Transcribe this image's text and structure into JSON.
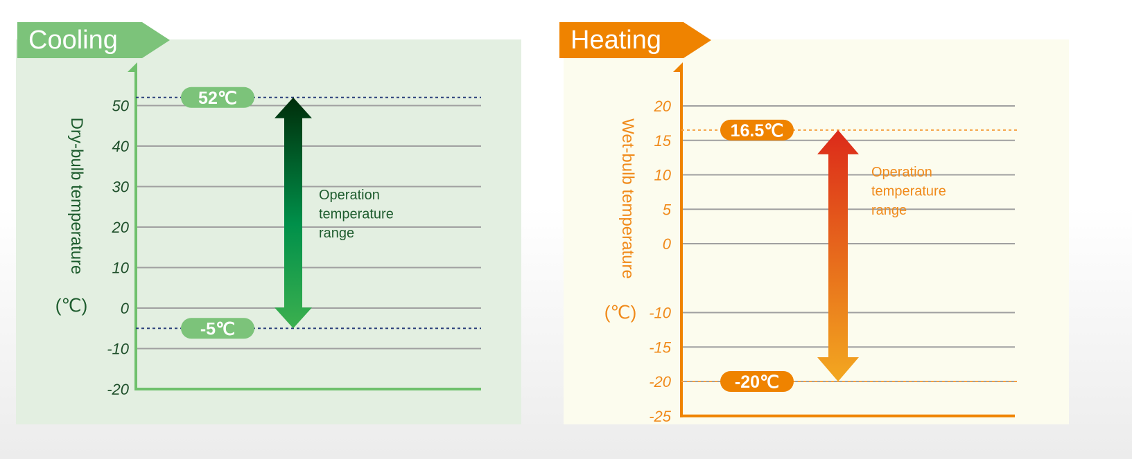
{
  "chart_data": [
    {
      "type": "range",
      "title": "Cooling",
      "ylabel": "Dry-bulb temperature",
      "yunit": "(℃)",
      "yticks": [
        50,
        40,
        30,
        20,
        10,
        0,
        -10,
        -20
      ],
      "ylim": [
        -20,
        55
      ],
      "grid": true,
      "range": {
        "max": 52,
        "min": -5
      },
      "range_labels": {
        "max": "52℃",
        "min": "-5℃"
      },
      "annotation": [
        "Operation",
        "temperature",
        "range"
      ],
      "colors": {
        "accent": "#7cc37a",
        "axis": "#6fc06c",
        "text": "#1e5c2e",
        "tick_text": "#1e4f2a",
        "panel_bg": "#e3efe1",
        "grid": "#a0a0a0",
        "dashed": "#2a3f7a",
        "arrow_top": "#002d0a",
        "arrow_mid": "#00904a",
        "arrow_bottom": "#3cb04f"
      }
    },
    {
      "type": "range",
      "title": "Heating",
      "ylabel": "Wet-bulb temperature",
      "yunit": "(℃)",
      "yticks": [
        20,
        15,
        10,
        5,
        0,
        -10,
        -15,
        -20,
        -25
      ],
      "ylim": [
        -25,
        22
      ],
      "grid": true,
      "range": {
        "max": 16.5,
        "min": -20
      },
      "range_labels": {
        "max": "16.5℃",
        "min": "-20℃"
      },
      "annotation": [
        "Operation",
        "temperature",
        "range"
      ],
      "colors": {
        "accent": "#ef8300",
        "axis": "#ef8300",
        "text": "#f08a1a",
        "tick_text": "#f08a1a",
        "panel_bg": "#fcfcee",
        "grid": "#a0a0a0",
        "dashed": "#f5a040",
        "arrow_top": "#dc2a1a",
        "arrow_mid": "#e8701c",
        "arrow_bottom": "#f3a820"
      }
    }
  ]
}
